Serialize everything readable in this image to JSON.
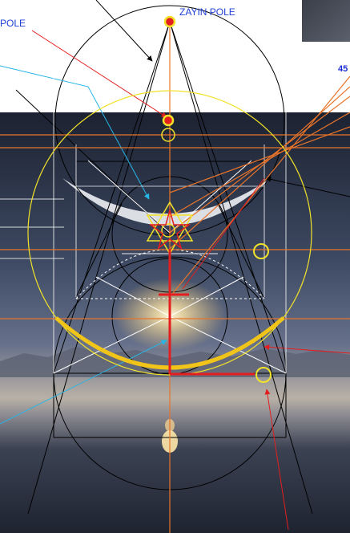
{
  "labels": {
    "zayin_pole": "ZAYIN POLE",
    "pole_left": "POLE",
    "number_45": "45"
  },
  "colors": {
    "black": "#000000",
    "orange": "#e8742a",
    "yellow": "#f2e229",
    "gold": "#f0c419",
    "red": "#e41e1e",
    "cyan": "#27b5e6",
    "white": "#ffffff",
    "blue_text": "#1c2fd6",
    "label_blue": "#2140d8",
    "sky_top": "#1f2533",
    "sky_mid": "#4a5670",
    "horizon": "#cfc3b0",
    "water": "#2d3444"
  }
}
